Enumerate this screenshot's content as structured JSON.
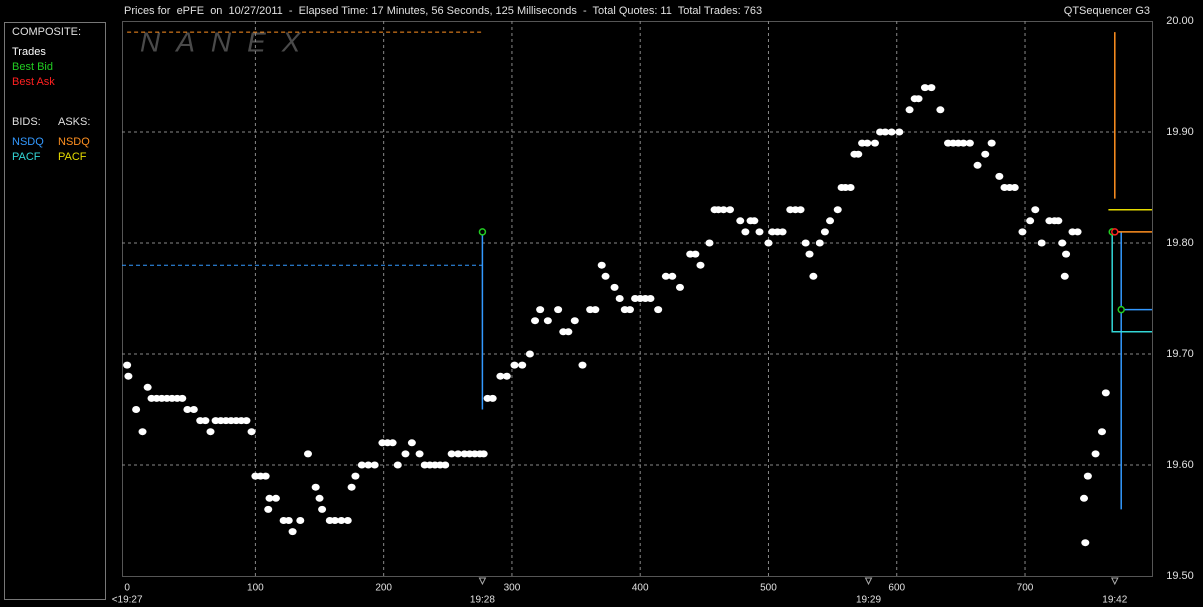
{
  "chart_data": {
    "type": "scatter",
    "title": "Prices for  ePFE  on  10/27/2011  -  Elapsed Time: 17 Minutes, 56 Seconds, 125 Milliseconds  -  Total Quotes: 11  Total Trades: 763",
    "subtitle": "QTSequencer G3",
    "watermark": "NANEX",
    "legend": {
      "title": "COMPOSITE:",
      "bids": "BIDS:",
      "asks": "ASKS:"
    },
    "xlim": [
      -4,
      799
    ],
    "xticks": [
      0,
      100,
      200,
      300,
      400,
      500,
      600,
      700
    ],
    "time_ticks": [
      {
        "value": 0,
        "label": "<19:27"
      },
      {
        "value": 277,
        "label": "19:28"
      },
      {
        "value": 578,
        "label": "19:29"
      },
      {
        "value": 770,
        "label": "19:42"
      }
    ],
    "ylim": [
      19.5,
      20.0
    ],
    "yticks": [
      {
        "value": 19.5,
        "label": "19.50"
      },
      {
        "value": 19.6,
        "label": "19.60"
      },
      {
        "value": 19.7,
        "label": "19.70"
      },
      {
        "value": 19.8,
        "label": "19.80"
      },
      {
        "value": 19.9,
        "label": "19.90"
      },
      {
        "value": 20.0,
        "label": "20.00"
      }
    ],
    "grid": true,
    "series": [
      {
        "name": "Trades",
        "group": "composite",
        "type": "scatter",
        "color": "#ffffff",
        "x": [
          0,
          1,
          7,
          12,
          16,
          19,
          23,
          27,
          31,
          35,
          39,
          43,
          47,
          52,
          57,
          61,
          65,
          69,
          73,
          77,
          81,
          85,
          89,
          93,
          97,
          100,
          104,
          108,
          110,
          111,
          116,
          122,
          126,
          129,
          135,
          141,
          147,
          150,
          152,
          158,
          162,
          167,
          172,
          175,
          178,
          183,
          188,
          193,
          199,
          203,
          207,
          211,
          217,
          222,
          228,
          232,
          236,
          240,
          244,
          248,
          253,
          258,
          263,
          267,
          271,
          275,
          278,
          281,
          285,
          291,
          296,
          302,
          308,
          314,
          318,
          322,
          328,
          336,
          340,
          344,
          349,
          355,
          361,
          365,
          370,
          373,
          380,
          384,
          388,
          392,
          396,
          400,
          404,
          408,
          414,
          420,
          425,
          431,
          439,
          443,
          447,
          454,
          458,
          461,
          465,
          470,
          478,
          482,
          486,
          489,
          493,
          500,
          503,
          507,
          511,
          517,
          521,
          525,
          529,
          532,
          535,
          540,
          544,
          548,
          554,
          557,
          560,
          564,
          567,
          570,
          573,
          577,
          583,
          587,
          591,
          596,
          602,
          610,
          614,
          617,
          622,
          627,
          634,
          640,
          644,
          648,
          652,
          657,
          663,
          669,
          674,
          680,
          684,
          688,
          692,
          698,
          704,
          708,
          713,
          719,
          723,
          726,
          729,
          731,
          732,
          737,
          741,
          746,
          747,
          749,
          755,
          760,
          763
        ],
        "values": [
          19.69,
          19.68,
          19.65,
          19.63,
          19.67,
          19.66,
          19.66,
          19.66,
          19.66,
          19.66,
          19.66,
          19.66,
          19.65,
          19.65,
          19.64,
          19.64,
          19.63,
          19.64,
          19.64,
          19.64,
          19.64,
          19.64,
          19.64,
          19.64,
          19.63,
          19.59,
          19.59,
          19.59,
          19.56,
          19.57,
          19.57,
          19.55,
          19.55,
          19.54,
          19.55,
          19.61,
          19.58,
          19.57,
          19.56,
          19.55,
          19.55,
          19.55,
          19.55,
          19.58,
          19.59,
          19.6,
          19.6,
          19.6,
          19.62,
          19.62,
          19.62,
          19.6,
          19.61,
          19.62,
          19.61,
          19.6,
          19.6,
          19.6,
          19.6,
          19.6,
          19.61,
          19.61,
          19.61,
          19.61,
          19.61,
          19.61,
          19.61,
          19.66,
          19.66,
          19.68,
          19.68,
          19.69,
          19.69,
          19.7,
          19.73,
          19.74,
          19.73,
          19.74,
          19.72,
          19.72,
          19.73,
          19.69,
          19.74,
          19.74,
          19.78,
          19.77,
          19.76,
          19.75,
          19.74,
          19.74,
          19.75,
          19.75,
          19.75,
          19.75,
          19.74,
          19.77,
          19.77,
          19.76,
          19.79,
          19.79,
          19.78,
          19.8,
          19.83,
          19.83,
          19.83,
          19.83,
          19.82,
          19.81,
          19.82,
          19.82,
          19.81,
          19.8,
          19.81,
          19.81,
          19.81,
          19.83,
          19.83,
          19.83,
          19.8,
          19.79,
          19.77,
          19.8,
          19.81,
          19.82,
          19.83,
          19.85,
          19.85,
          19.85,
          19.88,
          19.88,
          19.89,
          19.89,
          19.89,
          19.9,
          19.9,
          19.9,
          19.9,
          19.92,
          19.93,
          19.93,
          19.94,
          19.94,
          19.92,
          19.89,
          19.89,
          19.89,
          19.89,
          19.89,
          19.87,
          19.88,
          19.89,
          19.86,
          19.85,
          19.85,
          19.85,
          19.81,
          19.82,
          19.83,
          19.8,
          19.82,
          19.82,
          19.82,
          19.8,
          19.77,
          19.79,
          19.81,
          19.81,
          19.57,
          19.53,
          19.59,
          19.61,
          19.63,
          19.665
        ]
      },
      {
        "name": "Best Bid",
        "group": "composite",
        "type": "circle",
        "color": "#22cc22",
        "x": [
          277,
          768,
          775
        ],
        "values": [
          19.81,
          19.81,
          19.74
        ]
      },
      {
        "name": "Best Ask",
        "group": "composite",
        "type": "circle",
        "color": "#ff2020",
        "x": [
          770
        ],
        "values": [
          19.81
        ]
      },
      {
        "name": "NSDQ",
        "group": "bids",
        "type": "line",
        "dashed": true,
        "color": "#3399ff",
        "x": [
          -4,
          277
        ],
        "values": [
          19.78,
          19.78
        ]
      },
      {
        "name": "NSDQ",
        "group": "bids",
        "type": "line",
        "color": "#3399ff",
        "x": [
          277,
          277,
          null,
          775,
          775,
          775,
          799
        ],
        "values": [
          19.81,
          19.65,
          null,
          19.81,
          19.56,
          19.74,
          19.74
        ]
      },
      {
        "name": "PACF",
        "group": "bids",
        "type": "line",
        "color": "#33d6d6",
        "x": [
          768,
          768,
          799
        ],
        "values": [
          19.81,
          19.72,
          19.72
        ]
      },
      {
        "name": "NSDQ",
        "group": "asks",
        "type": "line",
        "dashed": true,
        "color": "#ff9020",
        "x": [
          0,
          277
        ],
        "values": [
          19.99,
          19.99
        ]
      },
      {
        "name": "NSDQ",
        "group": "asks",
        "type": "line",
        "color": "#ff9020",
        "x": [
          770,
          770,
          null,
          770,
          799
        ],
        "values": [
          19.99,
          19.84,
          null,
          19.81,
          19.81
        ]
      },
      {
        "name": "PACF",
        "group": "asks",
        "type": "line",
        "color": "#e6dc00",
        "x": [
          765,
          799
        ],
        "values": [
          19.83,
          19.83
        ]
      }
    ]
  }
}
